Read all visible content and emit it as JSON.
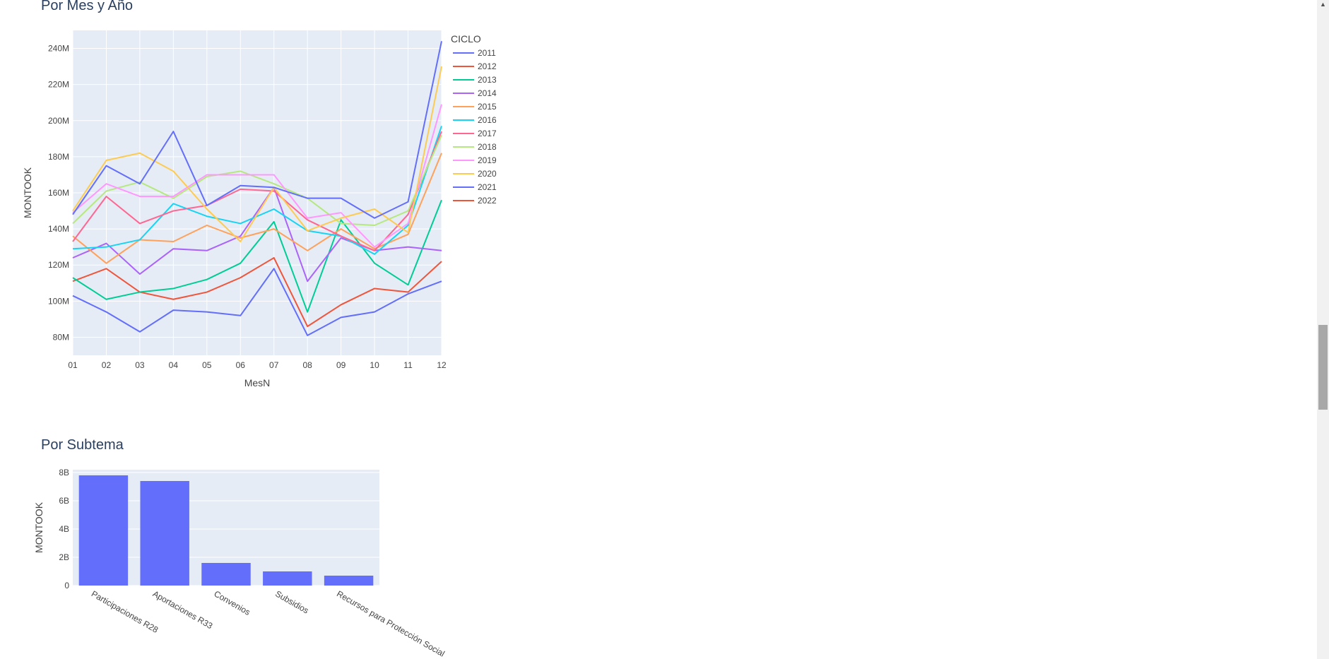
{
  "sections": {
    "monthly_title": "Por Mes y Año",
    "subtema_title": "Por Subtema"
  },
  "chart_data": [
    {
      "type": "line",
      "title": "Por Mes y Año",
      "xlabel": "MesN",
      "ylabel": "MONTOOK",
      "legend_title": "CICLO",
      "legend_position": "right",
      "grid": true,
      "x": [
        "01",
        "02",
        "03",
        "04",
        "05",
        "06",
        "07",
        "08",
        "09",
        "10",
        "11",
        "12"
      ],
      "ylim": [
        70000000,
        250000000
      ],
      "yticks": [
        80000000,
        100000000,
        120000000,
        140000000,
        160000000,
        180000000,
        200000000,
        220000000,
        240000000
      ],
      "ytick_labels": [
        "80M",
        "100M",
        "120M",
        "140M",
        "160M",
        "180M",
        "200M",
        "220M",
        "240M"
      ],
      "series": [
        {
          "name": "2011",
          "color": "#636efa",
          "values": [
            103,
            94,
            83,
            95,
            94,
            92,
            118,
            81,
            91,
            94,
            104,
            111
          ]
        },
        {
          "name": "2012",
          "color": "#EF553B",
          "values": [
            111,
            118,
            105,
            101,
            105,
            113,
            124,
            86,
            98,
            107,
            105,
            122
          ]
        },
        {
          "name": "2013",
          "color": "#00cc96",
          "values": [
            113,
            101,
            105,
            107,
            112,
            121,
            144,
            94,
            145,
            121,
            109,
            156
          ]
        },
        {
          "name": "2014",
          "color": "#ab63fa",
          "values": [
            124,
            132,
            115,
            129,
            128,
            136,
            163,
            111,
            135,
            128,
            130,
            128
          ]
        },
        {
          "name": "2015",
          "color": "#FFA15A",
          "values": [
            136,
            121,
            134,
            133,
            142,
            135,
            140,
            128,
            140,
            129,
            137,
            182
          ]
        },
        {
          "name": "2016",
          "color": "#19d3f3",
          "values": [
            129,
            130,
            134,
            154,
            147,
            143,
            151,
            139,
            136,
            126,
            142,
            197
          ]
        },
        {
          "name": "2017",
          "color": "#FF6692",
          "values": [
            133,
            158,
            143,
            150,
            153,
            162,
            161,
            145,
            136,
            128,
            148,
            194
          ]
        },
        {
          "name": "2018",
          "color": "#B6E880",
          "values": [
            143,
            161,
            166,
            157,
            169,
            172,
            165,
            157,
            143,
            142,
            150,
            192
          ]
        },
        {
          "name": "2019",
          "color": "#FF97FF",
          "values": [
            149,
            165,
            158,
            158,
            170,
            170,
            170,
            146,
            149,
            130,
            143,
            209
          ]
        },
        {
          "name": "2020",
          "color": "#FECB52",
          "values": [
            150,
            178,
            182,
            172,
            151,
            133,
            163,
            139,
            146,
            151,
            138,
            230
          ]
        },
        {
          "name": "2021",
          "color": "#636efa",
          "values": [
            148,
            175,
            165,
            194,
            153,
            164,
            163,
            157,
            157,
            146,
            155,
            244
          ]
        },
        {
          "name": "2022",
          "color": "#EF553B",
          "values": [
            null,
            null,
            null,
            null,
            null,
            null,
            null,
            null,
            null,
            null,
            null,
            null
          ]
        }
      ],
      "value_unit": "M"
    },
    {
      "type": "bar",
      "title": "Por Subtema",
      "xlabel": "",
      "ylabel": "MONTOOK",
      "color": "#636efa",
      "categories": [
        "Participaciones R28",
        "Aportaciones R33",
        "Convenios",
        "Subsidios",
        "Recursos para Protección Social"
      ],
      "values": [
        7.8,
        7.4,
        1.6,
        1.0,
        0.7
      ],
      "value_unit": "B",
      "ylim": [
        0,
        8.2
      ],
      "yticks": [
        0,
        2,
        4,
        6,
        8
      ],
      "ytick_labels": [
        "0",
        "2B",
        "4B",
        "6B",
        "8B"
      ]
    }
  ]
}
